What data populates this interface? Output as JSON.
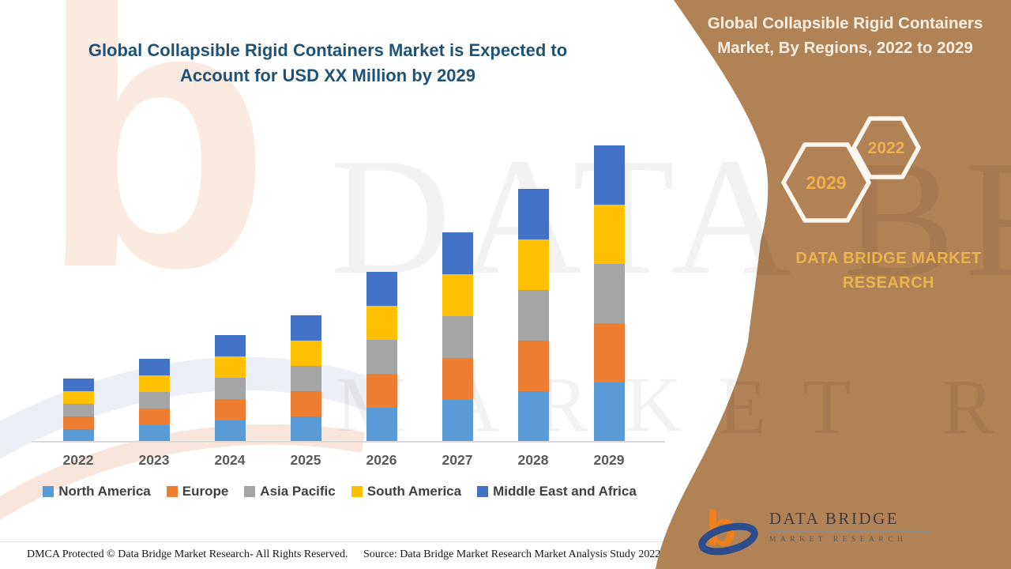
{
  "main": {
    "title": "Global Collapsible Rigid Containers Market is Expected to Account for USD XX Million by 2029"
  },
  "side_panel": {
    "title": "Global Collapsible Rigid Containers Market, By Regions, 2022 to 2029",
    "hexagon_years": [
      "2029",
      "2022"
    ],
    "brand_text": "DATA BRIDGE MARKET RESEARCH",
    "background_color": "#B28257",
    "gold_color": "#EEB04B"
  },
  "watermark": {
    "line1": "DATA BRIDGE",
    "line2": "MARKET RESEARCH",
    "letter": "b"
  },
  "chart_data": {
    "type": "bar",
    "stacked": true,
    "title": "Global Collapsible Rigid Containers Market, By Regions, 2022 to 2029",
    "xlabel": "",
    "ylabel": "",
    "categories": [
      "2022",
      "2023",
      "2024",
      "2025",
      "2026",
      "2027",
      "2028",
      "2029"
    ],
    "series": [
      {
        "name": "North America",
        "color": "#5B9BD5",
        "values": [
          16,
          21,
          27,
          32,
          43,
          53,
          64,
          75
        ]
      },
      {
        "name": "Europe",
        "color": "#ED7D31",
        "values": [
          16,
          21,
          27,
          32,
          43,
          53,
          64,
          75
        ]
      },
      {
        "name": "Asia Pacific",
        "color": "#A5A5A5",
        "values": [
          16,
          21,
          27,
          32,
          43,
          53,
          64,
          75
        ]
      },
      {
        "name": "South America",
        "color": "#FFC000",
        "values": [
          16,
          21,
          27,
          32,
          43,
          53,
          64,
          75
        ]
      },
      {
        "name": "Middle East and Africa",
        "color": "#4472C4",
        "values": [
          16,
          21,
          27,
          32,
          43,
          53,
          64,
          75
        ]
      }
    ],
    "stack_order_bottom_to_top": [
      "North America",
      "Europe",
      "Asia Pacific",
      "South America",
      "Middle East and Africa"
    ],
    "bar_totals": [
      80,
      105,
      135,
      160,
      215,
      265,
      320,
      375
    ],
    "ylim": [
      0,
      400
    ],
    "value_axis_visible": false,
    "values_note": "no numeric axis shown; values are relative units estimated from bar heights",
    "legend_position": "bottom",
    "grid": false
  },
  "footer": {
    "dmca_text": "DMCA Protected © Data Bridge Market Research- All Rights Reserved.",
    "source_text": "Source: Data Bridge Market Research Market Analysis Study 2022"
  },
  "logo": {
    "name": "DATA BRIDGE",
    "tagline": "MARKET RESEARCH"
  }
}
